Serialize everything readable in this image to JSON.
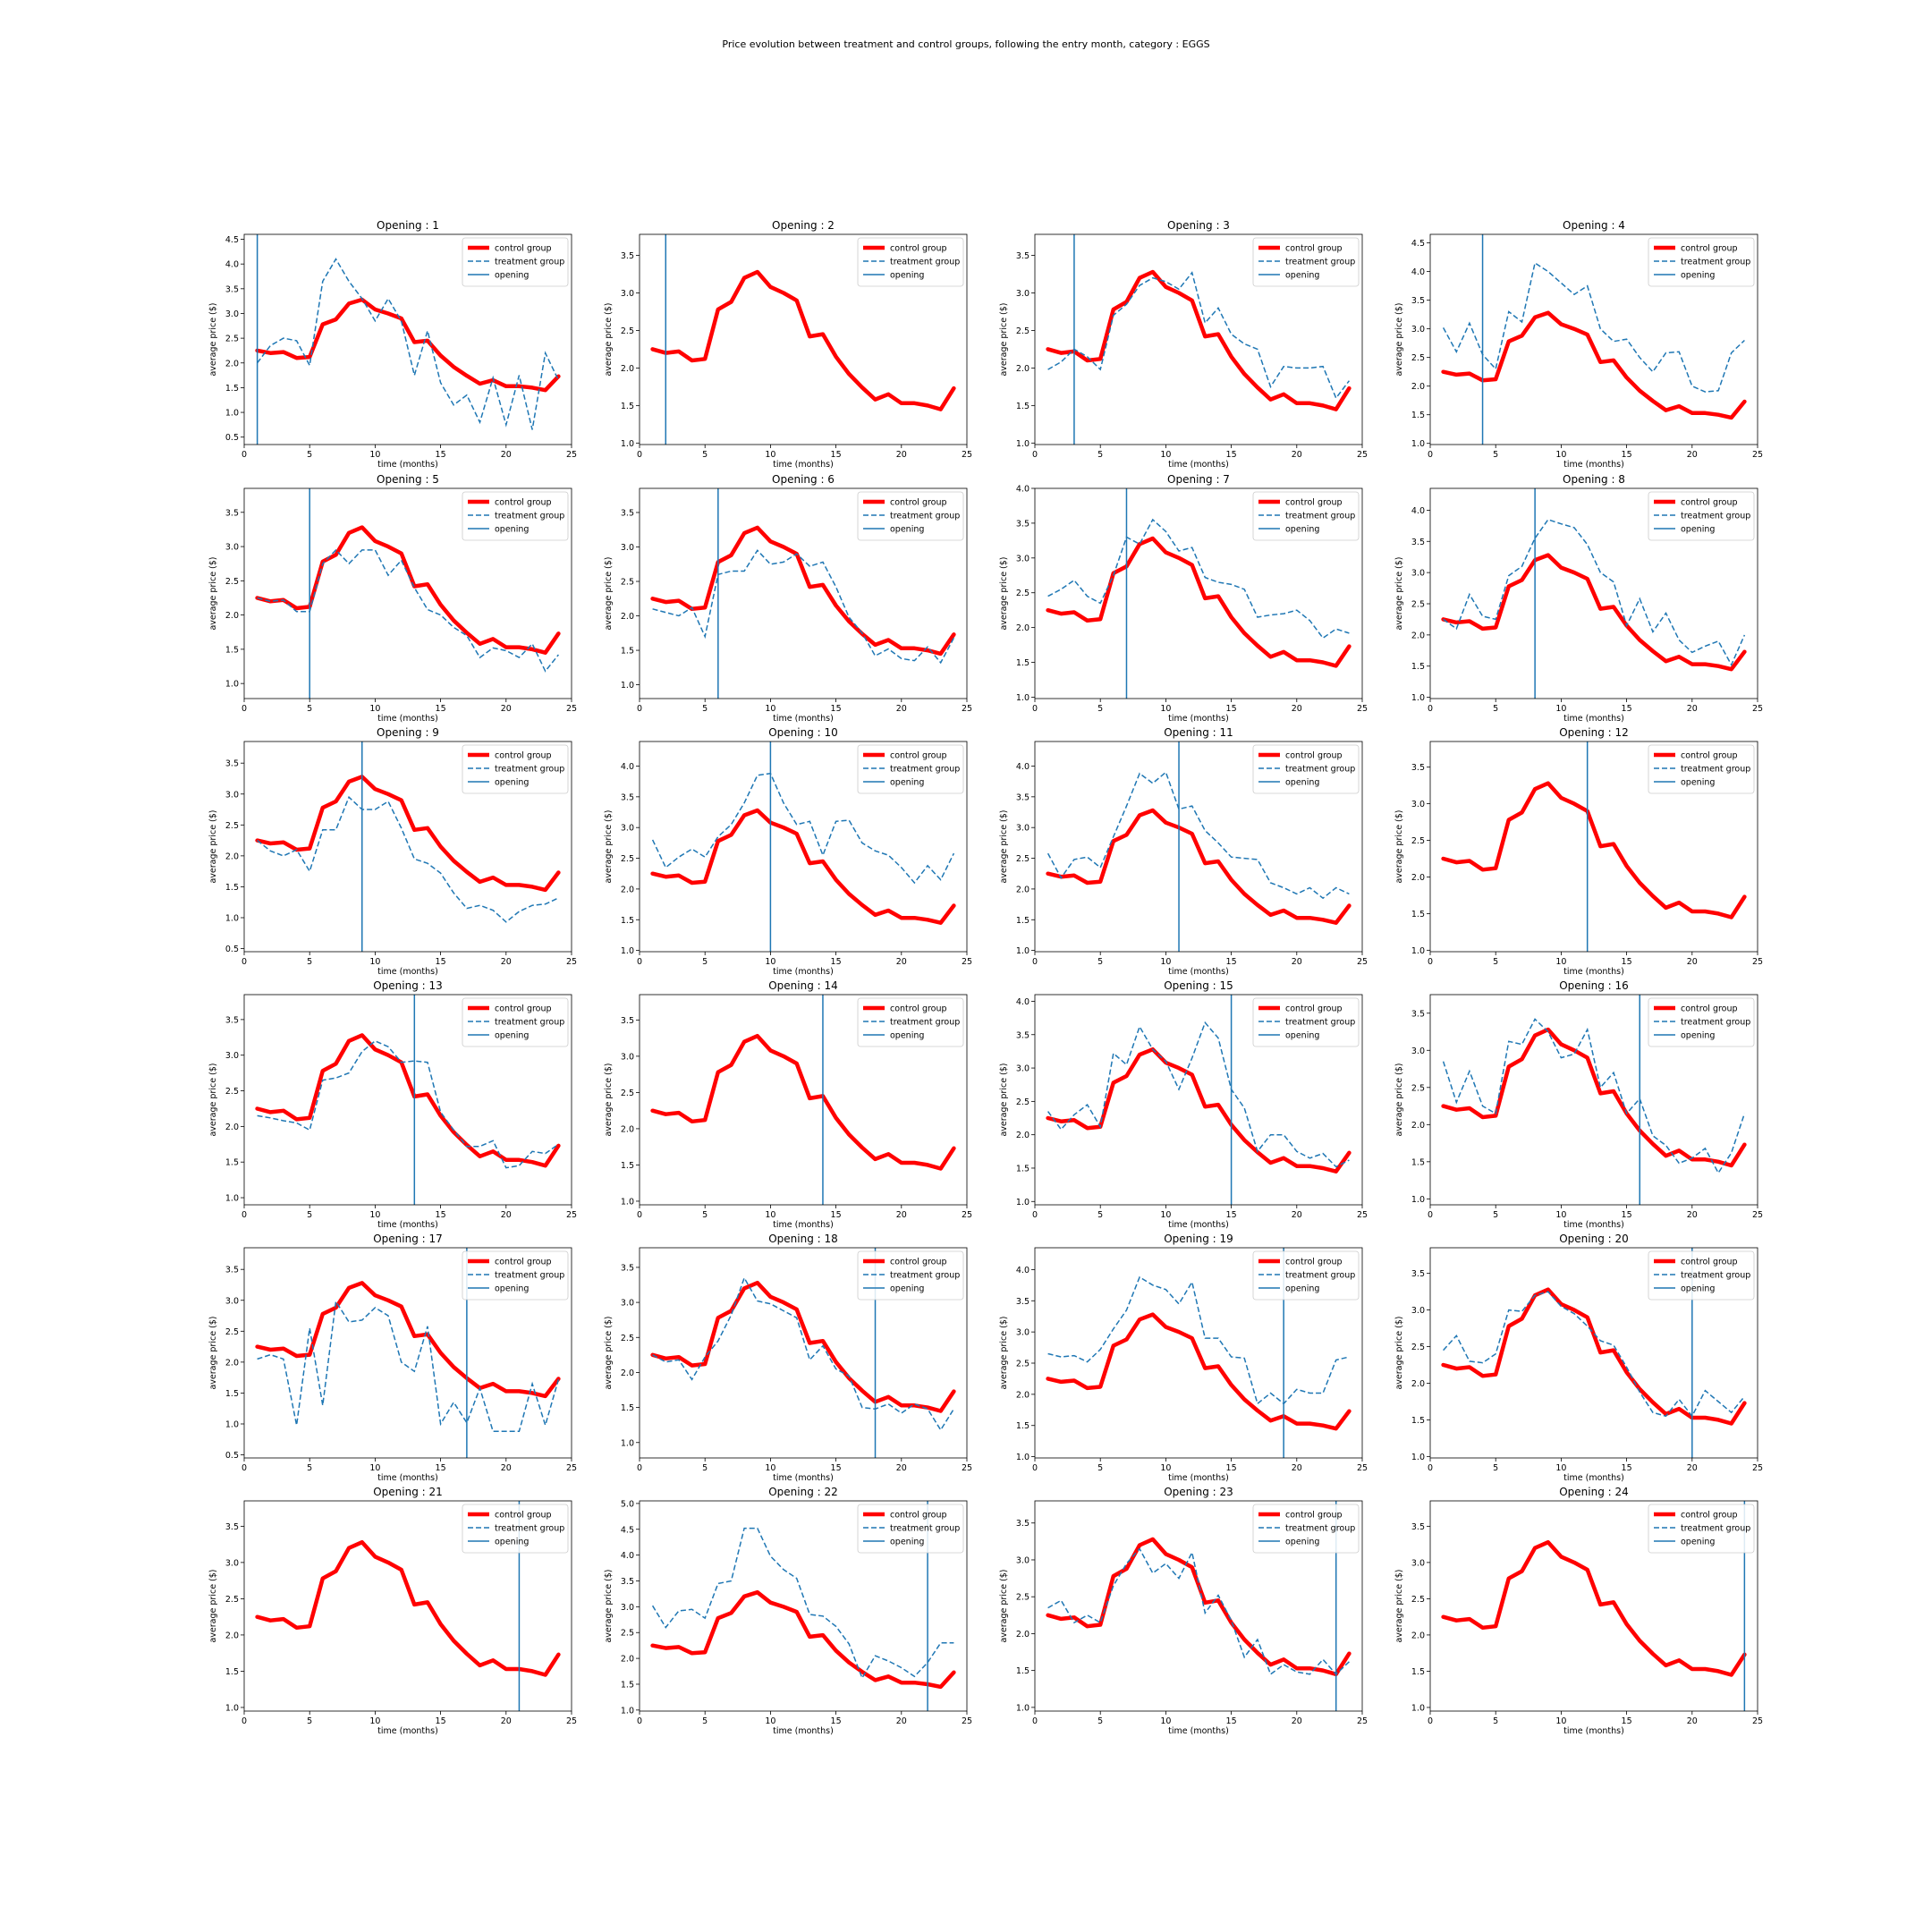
{
  "figure": {
    "suptitle": "Price evolution between treatment and control groups, following the entry month, category : EGGS"
  },
  "colors": {
    "control": "#ff0000",
    "treatment": "#1f77b4",
    "opening": "#1f77b4"
  },
  "chart_data": {
    "type": "line",
    "title": "Price evolution between treatment and control groups, following the entry month, category : EGGS",
    "xlabel": "time (months)",
    "ylabel": "average price ($)",
    "legend": [
      "control group",
      "treatment group",
      "opening"
    ],
    "legend_position": "top-right",
    "x": [
      1,
      2,
      3,
      4,
      5,
      6,
      7,
      8,
      9,
      10,
      11,
      12,
      13,
      14,
      15,
      16,
      17,
      18,
      19,
      20,
      21,
      22,
      23,
      24
    ],
    "xlim": [
      0,
      25
    ],
    "xticks": [
      0,
      5,
      10,
      15,
      20,
      25
    ],
    "control_series": {
      "name": "control group",
      "values": [
        2.25,
        2.2,
        2.22,
        2.1,
        2.12,
        2.78,
        2.88,
        3.2,
        3.28,
        3.08,
        3.0,
        2.9,
        2.42,
        2.45,
        2.15,
        1.92,
        1.74,
        1.58,
        1.65,
        1.53,
        1.53,
        1.5,
        1.45,
        1.73
      ]
    },
    "panels": [
      {
        "title": "Opening : 1",
        "opening": 1,
        "ylim": [
          0.35,
          4.6
        ],
        "yticks": [
          0.5,
          1.0,
          1.5,
          2.0,
          2.5,
          3.0,
          3.5,
          4.0,
          4.5
        ],
        "treatment": [
          2.0,
          2.35,
          2.5,
          2.45,
          1.95,
          3.65,
          4.1,
          3.65,
          3.3,
          2.85,
          3.3,
          2.85,
          1.75,
          2.65,
          1.6,
          1.15,
          1.35,
          0.8,
          1.7,
          0.75,
          1.75,
          0.65,
          2.2,
          1.65
        ]
      },
      {
        "title": "Opening : 2",
        "opening": 2,
        "ylim": [
          0.98,
          3.78
        ],
        "yticks": [
          1.0,
          1.5,
          2.0,
          2.5,
          3.0,
          3.5
        ],
        "treatment": []
      },
      {
        "title": "Opening : 3",
        "opening": 3,
        "ylim": [
          0.98,
          3.78
        ],
        "yticks": [
          1.0,
          1.5,
          2.0,
          2.5,
          3.0,
          3.5
        ],
        "treatment": [
          1.98,
          2.08,
          2.25,
          2.15,
          1.98,
          2.7,
          2.85,
          3.1,
          3.2,
          3.15,
          3.05,
          3.27,
          2.6,
          2.8,
          2.45,
          2.32,
          2.25,
          1.75,
          2.02,
          2.0,
          2.0,
          2.02,
          1.6,
          1.83
        ]
      },
      {
        "title": "Opening : 4",
        "opening": 4,
        "ylim": [
          0.98,
          4.65
        ],
        "yticks": [
          1.0,
          1.5,
          2.0,
          2.5,
          3.0,
          3.5,
          4.0,
          4.5
        ],
        "treatment": [
          3.02,
          2.6,
          3.1,
          2.55,
          2.3,
          3.3,
          3.12,
          4.15,
          4.0,
          3.8,
          3.6,
          3.75,
          3.0,
          2.78,
          2.82,
          2.5,
          2.25,
          2.58,
          2.6,
          2.0,
          1.9,
          1.92,
          2.58,
          2.8
        ]
      },
      {
        "title": "Opening : 5",
        "opening": 5,
        "ylim": [
          0.78,
          3.85
        ],
        "yticks": [
          1.0,
          1.5,
          2.0,
          2.5,
          3.0,
          3.5
        ],
        "treatment": [
          2.25,
          2.2,
          2.22,
          2.05,
          2.05,
          2.75,
          2.95,
          2.75,
          2.95,
          2.95,
          2.58,
          2.8,
          2.4,
          2.08,
          2.0,
          1.82,
          1.7,
          1.38,
          1.52,
          1.48,
          1.38,
          1.58,
          1.18,
          1.42
        ]
      },
      {
        "title": "Opening : 6",
        "opening": 6,
        "ylim": [
          0.8,
          3.85
        ],
        "yticks": [
          1.0,
          1.5,
          2.0,
          2.5,
          3.0,
          3.5
        ],
        "treatment": [
          2.1,
          2.05,
          2.0,
          2.12,
          1.7,
          2.6,
          2.65,
          2.65,
          2.95,
          2.75,
          2.78,
          2.9,
          2.72,
          2.78,
          2.42,
          1.98,
          1.75,
          1.42,
          1.52,
          1.38,
          1.35,
          1.55,
          1.32,
          1.68
        ]
      },
      {
        "title": "Opening : 7",
        "opening": 7,
        "ylim": [
          0.98,
          4.0
        ],
        "yticks": [
          1.0,
          1.5,
          2.0,
          2.5,
          3.0,
          3.5,
          4.0
        ],
        "treatment": [
          2.45,
          2.55,
          2.68,
          2.45,
          2.35,
          2.75,
          3.3,
          3.2,
          3.55,
          3.38,
          3.1,
          3.15,
          2.72,
          2.65,
          2.62,
          2.55,
          2.15,
          2.18,
          2.2,
          2.25,
          2.1,
          1.85,
          1.98,
          1.92
        ]
      },
      {
        "title": "Opening : 8",
        "opening": 8,
        "ylim": [
          0.98,
          4.35
        ],
        "yticks": [
          1.0,
          1.5,
          2.0,
          2.5,
          3.0,
          3.5,
          4.0
        ],
        "treatment": [
          2.25,
          2.1,
          2.65,
          2.3,
          2.25,
          2.95,
          3.1,
          3.55,
          3.85,
          3.78,
          3.72,
          3.45,
          3.0,
          2.85,
          2.15,
          2.58,
          2.05,
          2.35,
          1.92,
          1.72,
          1.82,
          1.9,
          1.52,
          2.0
        ]
      },
      {
        "title": "Opening : 9",
        "opening": 9,
        "ylim": [
          0.45,
          3.85
        ],
        "yticks": [
          0.5,
          1.0,
          1.5,
          2.0,
          2.5,
          3.0,
          3.5
        ],
        "treatment": [
          2.25,
          2.08,
          2.0,
          2.1,
          1.75,
          2.42,
          2.42,
          2.95,
          2.75,
          2.75,
          2.88,
          2.45,
          1.95,
          1.88,
          1.72,
          1.4,
          1.15,
          1.2,
          1.12,
          0.93,
          1.1,
          1.2,
          1.22,
          1.32
        ]
      },
      {
        "title": "Opening : 10",
        "opening": 10,
        "ylim": [
          0.98,
          4.4
        ],
        "yticks": [
          1.0,
          1.5,
          2.0,
          2.5,
          3.0,
          3.5,
          4.0
        ],
        "treatment": [
          2.8,
          2.35,
          2.52,
          2.65,
          2.52,
          2.85,
          3.05,
          3.4,
          3.85,
          3.88,
          3.4,
          3.05,
          3.1,
          2.55,
          3.1,
          3.12,
          2.75,
          2.62,
          2.55,
          2.35,
          2.1,
          2.38,
          2.15,
          2.58
        ]
      },
      {
        "title": "Opening : 11",
        "opening": 11,
        "ylim": [
          0.98,
          4.4
        ],
        "yticks": [
          1.0,
          1.5,
          2.0,
          2.5,
          3.0,
          3.5,
          4.0
        ],
        "treatment": [
          2.58,
          2.18,
          2.48,
          2.52,
          2.35,
          2.85,
          3.35,
          3.88,
          3.72,
          3.9,
          3.3,
          3.35,
          2.95,
          2.75,
          2.52,
          2.5,
          2.48,
          2.1,
          2.02,
          1.92,
          2.02,
          1.85,
          2.02,
          1.92
        ]
      },
      {
        "title": "Opening : 12",
        "opening": 12,
        "ylim": [
          0.98,
          3.85
        ],
        "yticks": [
          1.0,
          1.5,
          2.0,
          2.5,
          3.0,
          3.5
        ],
        "treatment": []
      },
      {
        "title": "Opening : 13",
        "opening": 13,
        "ylim": [
          0.9,
          3.85
        ],
        "yticks": [
          1.0,
          1.5,
          2.0,
          2.5,
          3.0,
          3.5
        ],
        "treatment": [
          2.15,
          2.12,
          2.08,
          2.05,
          1.95,
          2.65,
          2.68,
          2.75,
          3.05,
          3.2,
          3.12,
          2.9,
          2.92,
          2.9,
          2.2,
          1.95,
          1.72,
          1.72,
          1.8,
          1.42,
          1.45,
          1.65,
          1.62,
          1.75
        ]
      },
      {
        "title": "Opening : 14",
        "opening": 14,
        "ylim": [
          0.95,
          3.85
        ],
        "yticks": [
          1.0,
          1.5,
          2.0,
          2.5,
          3.0,
          3.5
        ],
        "treatment": []
      },
      {
        "title": "Opening : 15",
        "opening": 15,
        "ylim": [
          0.95,
          4.1
        ],
        "yticks": [
          1.0,
          1.5,
          2.0,
          2.5,
          3.0,
          3.5,
          4.0
        ],
        "treatment": [
          2.35,
          2.08,
          2.3,
          2.45,
          2.12,
          3.22,
          3.05,
          3.62,
          3.28,
          3.1,
          2.68,
          3.15,
          3.68,
          3.45,
          2.68,
          2.4,
          1.75,
          2.0,
          2.0,
          1.75,
          1.65,
          1.72,
          1.52,
          1.62
        ]
      },
      {
        "title": "Opening : 16",
        "opening": 16,
        "ylim": [
          0.92,
          3.75
        ],
        "yticks": [
          1.0,
          1.5,
          2.0,
          2.5,
          3.0,
          3.5
        ],
        "treatment": [
          2.85,
          2.3,
          2.72,
          2.25,
          2.15,
          3.12,
          3.08,
          3.42,
          3.25,
          2.9,
          2.95,
          3.28,
          2.5,
          2.7,
          2.15,
          2.35,
          1.85,
          1.72,
          1.48,
          1.55,
          1.68,
          1.35,
          1.62,
          2.15
        ]
      },
      {
        "title": "Opening : 17",
        "opening": 17,
        "ylim": [
          0.45,
          3.85
        ],
        "yticks": [
          0.5,
          1.0,
          1.5,
          2.0,
          2.5,
          3.0,
          3.5
        ],
        "treatment": [
          2.05,
          2.12,
          2.05,
          0.98,
          2.55,
          1.3,
          2.98,
          2.65,
          2.68,
          2.88,
          2.75,
          2.0,
          1.85,
          2.58,
          1.0,
          1.35,
          1.02,
          1.58,
          0.88,
          0.88,
          0.88,
          1.65,
          0.98,
          1.72
        ]
      },
      {
        "title": "Opening : 18",
        "opening": 18,
        "ylim": [
          0.78,
          3.78
        ],
        "yticks": [
          1.0,
          1.5,
          2.0,
          2.5,
          3.0,
          3.5
        ],
        "treatment": [
          2.25,
          2.15,
          2.18,
          1.9,
          2.22,
          2.45,
          2.82,
          3.35,
          3.02,
          2.98,
          2.88,
          2.78,
          2.18,
          2.38,
          2.05,
          1.95,
          1.5,
          1.48,
          1.55,
          1.42,
          1.55,
          1.48,
          1.18,
          1.48
        ]
      },
      {
        "title": "Opening : 19",
        "opening": 19,
        "ylim": [
          0.98,
          4.35
        ],
        "yticks": [
          1.0,
          1.5,
          2.0,
          2.5,
          3.0,
          3.5,
          4.0
        ],
        "treatment": [
          2.65,
          2.6,
          2.62,
          2.52,
          2.72,
          3.05,
          3.35,
          3.88,
          3.75,
          3.68,
          3.45,
          3.8,
          2.9,
          2.9,
          2.6,
          2.58,
          1.85,
          2.02,
          1.85,
          2.08,
          2.02,
          2.02,
          2.55,
          2.6
        ]
      },
      {
        "title": "Opening : 20",
        "opening": 20,
        "ylim": [
          0.98,
          3.85
        ],
        "yticks": [
          1.0,
          1.5,
          2.0,
          2.5,
          3.0,
          3.5
        ],
        "treatment": [
          2.45,
          2.65,
          2.3,
          2.28,
          2.4,
          3.0,
          2.98,
          3.2,
          3.25,
          3.05,
          2.95,
          2.78,
          2.58,
          2.52,
          2.22,
          1.88,
          1.6,
          1.55,
          1.78,
          1.55,
          1.9,
          1.75,
          1.6,
          1.82
        ]
      },
      {
        "title": "Opening : 21",
        "opening": 21,
        "ylim": [
          0.95,
          3.85
        ],
        "yticks": [
          1.0,
          1.5,
          2.0,
          2.5,
          3.0,
          3.5
        ],
        "treatment": []
      },
      {
        "title": "Opening : 22",
        "opening": 22,
        "ylim": [
          0.98,
          5.05
        ],
        "yticks": [
          1.0,
          1.5,
          2.0,
          2.5,
          3.0,
          3.5,
          4.0,
          4.5,
          5.0
        ],
        "treatment": [
          3.02,
          2.6,
          2.92,
          2.95,
          2.78,
          3.45,
          3.5,
          4.52,
          4.52,
          3.98,
          3.72,
          3.55,
          2.85,
          2.82,
          2.62,
          2.28,
          1.62,
          2.05,
          1.95,
          1.82,
          1.65,
          1.92,
          2.3,
          2.3
        ]
      },
      {
        "title": "Opening : 23",
        "opening": 23,
        "ylim": [
          0.95,
          3.8
        ],
        "yticks": [
          1.0,
          1.5,
          2.0,
          2.5,
          3.0,
          3.5
        ],
        "treatment": [
          2.35,
          2.45,
          2.15,
          2.25,
          2.15,
          2.65,
          2.95,
          3.15,
          2.82,
          2.95,
          2.75,
          3.1,
          2.28,
          2.52,
          2.18,
          1.68,
          1.92,
          1.45,
          1.58,
          1.48,
          1.45,
          1.65,
          1.45,
          1.62
        ]
      },
      {
        "title": "Opening : 24",
        "opening": 24,
        "ylim": [
          0.95,
          3.85
        ],
        "yticks": [
          1.0,
          1.5,
          2.0,
          2.5,
          3.0,
          3.5
        ],
        "treatment": []
      }
    ]
  }
}
